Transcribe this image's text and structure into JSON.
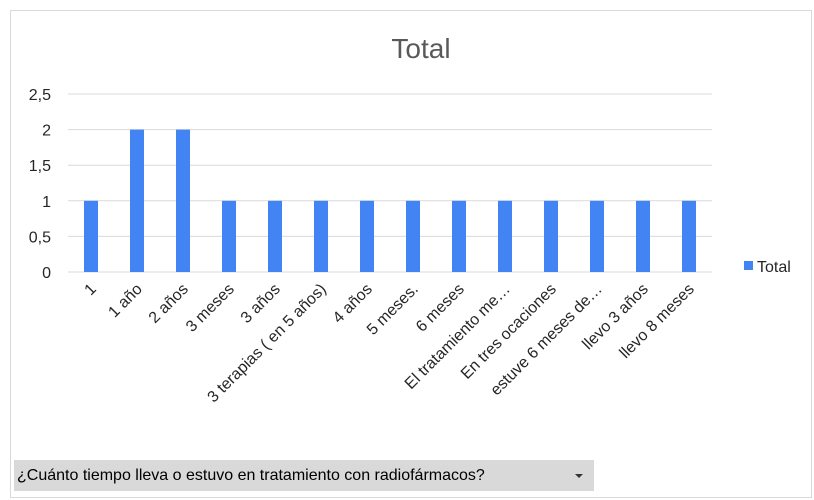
{
  "chart_data": {
    "type": "bar",
    "title": "Total",
    "categories": [
      "1",
      "1 año",
      "2 años",
      "3  meses",
      "3 años",
      "3 terapias ( en 5 años)",
      "4 años",
      "5 meses.",
      "6 meses",
      "El tratamiento me…",
      "En tres ocaciones",
      "estuve 6 meses de…",
      "llevo 3 años",
      "llevo 8 meses"
    ],
    "series": [
      {
        "name": "Total",
        "values": [
          1,
          2,
          2,
          1,
          1,
          1,
          1,
          1,
          1,
          1,
          1,
          1,
          1,
          1
        ],
        "color": "#4284f3"
      }
    ],
    "ylim": [
      0,
      2.5
    ],
    "yticks": [
      "0",
      "0,5",
      "1",
      "1,5",
      "2",
      "2,5"
    ],
    "grid": true,
    "legend_position": "right"
  },
  "filter": {
    "label": "¿Cuánto tiempo lleva o estuvo en tratamiento con radiofármacos?",
    "icon": "dropdown-arrow-icon"
  }
}
